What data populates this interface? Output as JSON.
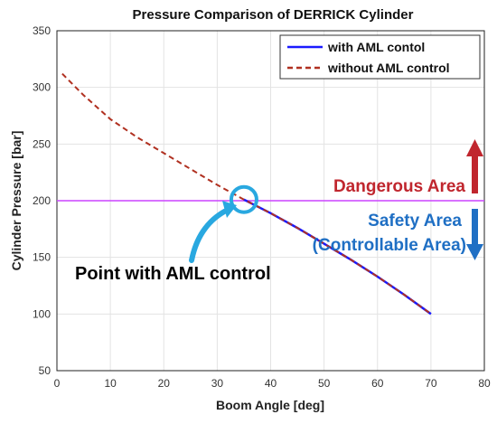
{
  "chart_data": {
    "type": "line",
    "title": "Pressure Comparison of DERRICK Cylinder",
    "xlabel": "Boom Angle [deg]",
    "ylabel": "Cylinder Pressure [bar]",
    "xlim": [
      0,
      80
    ],
    "ylim": [
      50,
      350
    ],
    "xticks": [
      0,
      10,
      20,
      30,
      40,
      50,
      60,
      70,
      80
    ],
    "yticks": [
      50,
      100,
      150,
      200,
      250,
      300,
      350
    ],
    "grid": true,
    "legend_position": "top-right",
    "series": [
      {
        "name": "with AML contol",
        "color": "#1a1aff",
        "style": "solid",
        "x": [
          35,
          40,
          45,
          50,
          55,
          60,
          65,
          70
        ],
        "y": [
          201,
          189,
          176,
          162,
          148,
          133,
          117,
          100
        ]
      },
      {
        "name": "without AML control",
        "color": "#b03020",
        "style": "dashed",
        "x": [
          1,
          5,
          10,
          15,
          20,
          25,
          30,
          35,
          40,
          45,
          50,
          55,
          60,
          65,
          70
        ],
        "y": [
          312,
          293,
          272,
          256,
          242,
          228,
          214,
          201,
          189,
          176,
          162,
          148,
          133,
          117,
          100
        ]
      }
    ],
    "threshold": {
      "y": 200,
      "color": "#cc44ff"
    },
    "annotations": {
      "danger_label": "Dangerous Area",
      "safety_label_line1": "Safety Area",
      "safety_label_line2": "(Controllable Area)",
      "point_label": "Point with AML control",
      "danger_color": "#c0262e",
      "safety_color": "#1f6fc4",
      "highlight_color": "#29a8e0",
      "highlight_point": {
        "x": 35,
        "y": 201
      }
    }
  }
}
